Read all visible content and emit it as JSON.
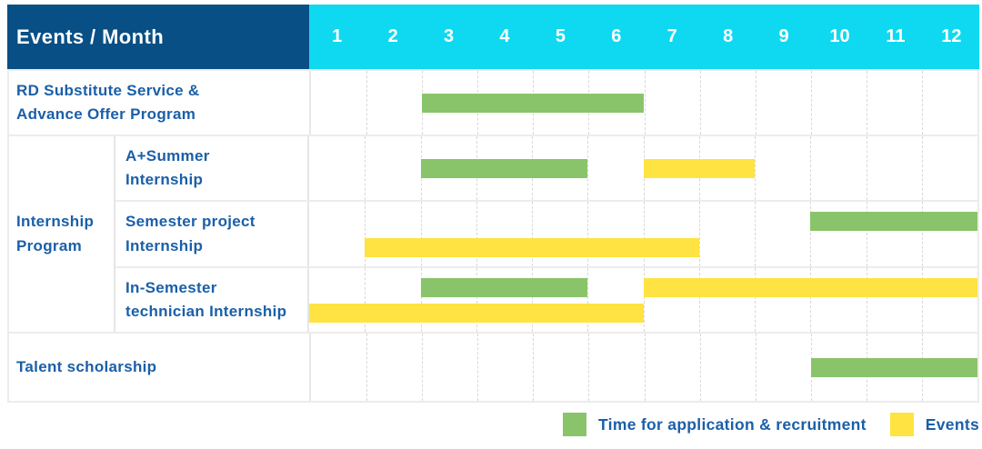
{
  "header": {
    "corner_label": "Events / Month",
    "months": [
      "1",
      "2",
      "3",
      "4",
      "5",
      "6",
      "7",
      "8",
      "9",
      "10",
      "11",
      "12"
    ]
  },
  "groups": {
    "internship": "Internship\nProgram"
  },
  "legend": {
    "application": "Time for application & recruitment",
    "events": "Events"
  },
  "colors": {
    "header_bg": "#084f85",
    "month_header_bg": "#0fd9f0",
    "header_text": "#ffffff",
    "label_text": "#1a5fa8",
    "bar_application_green": "#8ac46a",
    "bar_event_yellow": "#ffe342",
    "gridline": "#d8d8d8",
    "row_border": "#ececec"
  },
  "chart_data": {
    "type": "table",
    "subtype": "gantt-schedule",
    "title": "Events / Month",
    "x_categories": [
      1,
      2,
      3,
      4,
      5,
      6,
      7,
      8,
      9,
      10,
      11,
      12
    ],
    "x_axis_label": "Month",
    "grid": "dashed-vertical-month-lines",
    "legend_position": "bottom-right",
    "legend": [
      {
        "series": "application_recruitment",
        "name": "Time for application & recruitment",
        "color": "#8ac46a"
      },
      {
        "series": "event",
        "name": "Events",
        "color": "#ffe342"
      }
    ],
    "rows": [
      {
        "label": "RD Substitute Service &\nAdvance Offer Program",
        "group": null,
        "bars": [
          {
            "series": "application_recruitment",
            "start_month": 3,
            "end_month": 6,
            "band": "center"
          }
        ]
      },
      {
        "label": "A+Summer\nInternship",
        "group": "Internship Program",
        "bars": [
          {
            "series": "application_recruitment",
            "start_month": 3,
            "end_month": 5,
            "band": "center"
          },
          {
            "series": "event",
            "start_month": 7,
            "end_month": 8,
            "band": "center"
          }
        ]
      },
      {
        "label": "Semester project\nInternship",
        "group": "Internship Program",
        "bars": [
          {
            "series": "application_recruitment",
            "start_month": 10,
            "end_month": 12,
            "band": "upper"
          },
          {
            "series": "event",
            "start_month": 2,
            "end_month": 7,
            "band": "lower"
          }
        ]
      },
      {
        "label": "In-Semester\ntechnician Internship",
        "group": "Internship Program",
        "bars": [
          {
            "series": "application_recruitment",
            "start_month": 3,
            "end_month": 5,
            "band": "upper"
          },
          {
            "series": "event",
            "start_month": 7,
            "end_month": 12,
            "band": "upper"
          },
          {
            "series": "event",
            "start_month": 1,
            "end_month": 6,
            "band": "lower"
          }
        ]
      },
      {
        "label": "Talent scholarship",
        "group": null,
        "bars": [
          {
            "series": "application_recruitment",
            "start_month": 10,
            "end_month": 12,
            "band": "center"
          }
        ]
      }
    ]
  }
}
